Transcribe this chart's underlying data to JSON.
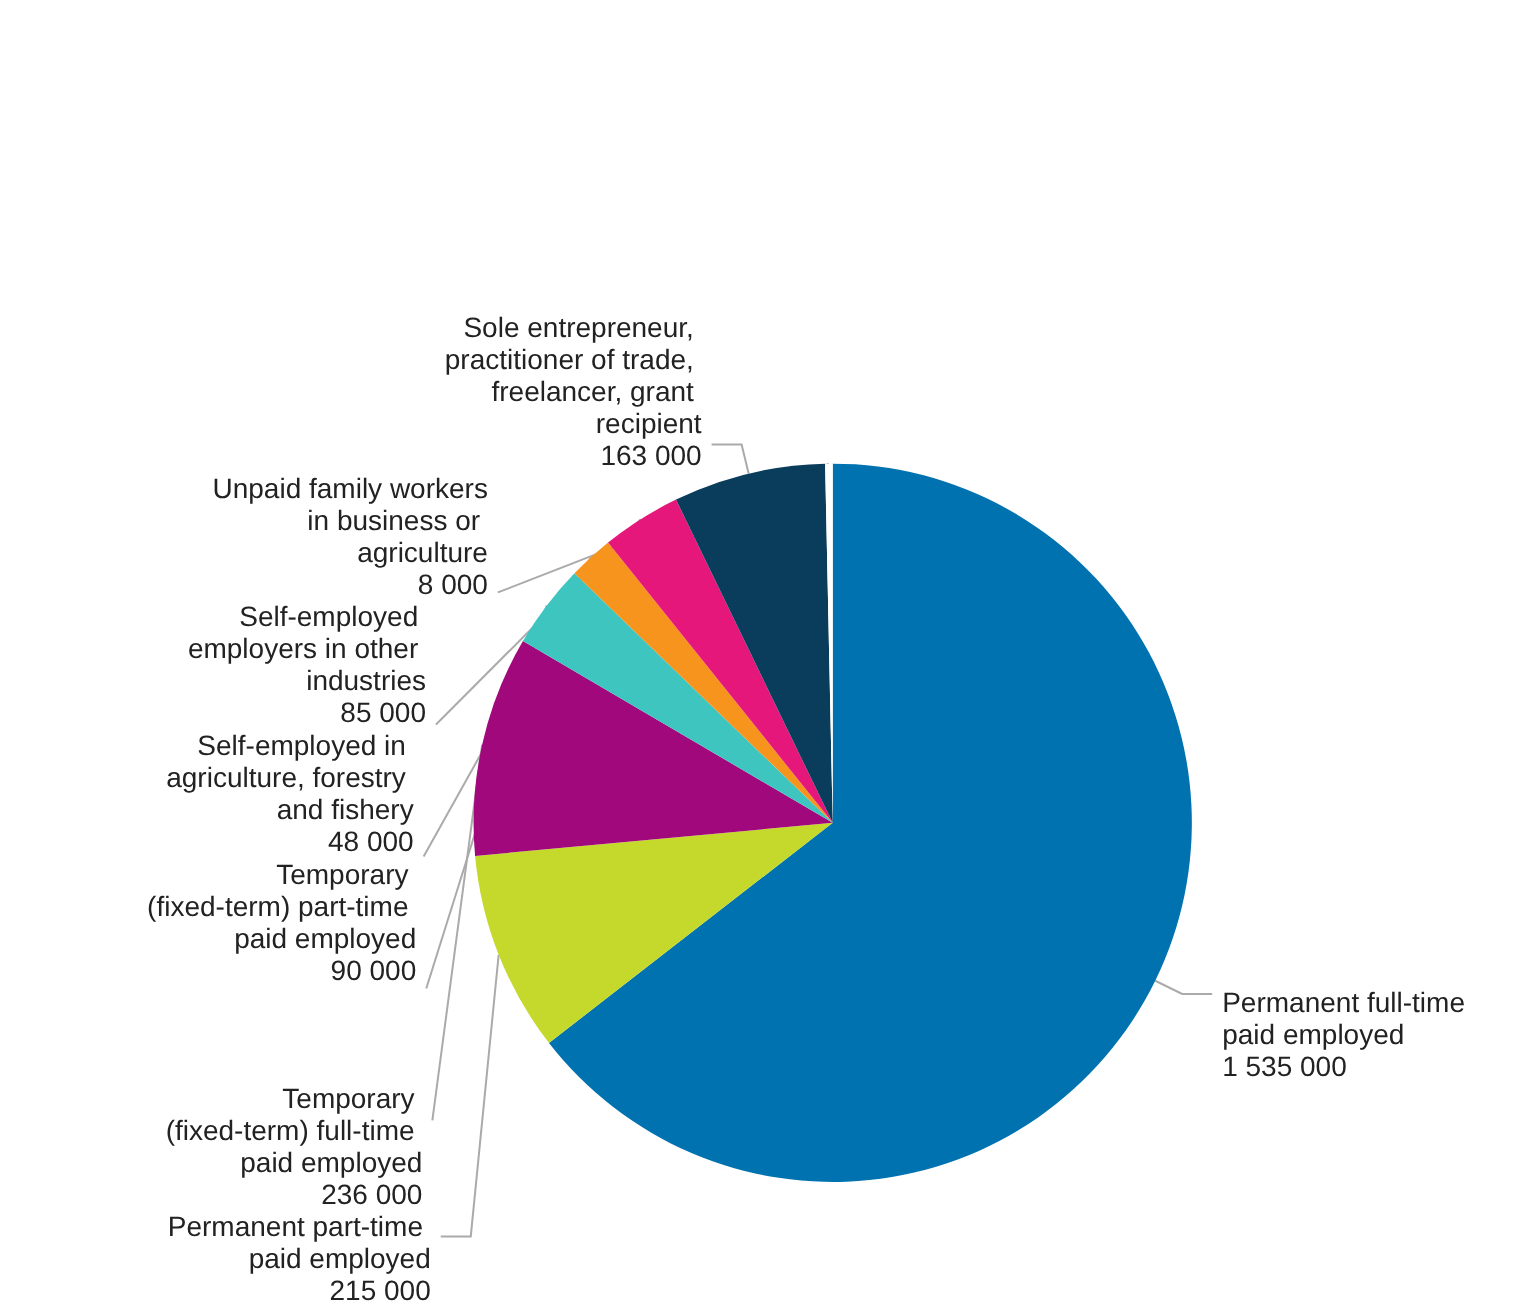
{
  "chart_data": {
    "type": "pie",
    "categories": [
      "Permanent full-time paid employed",
      "Permanent part-time paid employed",
      "Temporary (fixed-term) full-time paid employed",
      "Temporary (fixed-term) part-time paid employed",
      "Self-employed in agriculture, forestry and fishery",
      "Self-employed employers in other industries",
      "Sole entrepreneur, practitioner of trade, freelancer, grant recipient",
      "Unpaid family workers in business or agriculture"
    ],
    "values": [
      1535000,
      215000,
      236000,
      90000,
      48000,
      85000,
      163000,
      8000
    ],
    "value_labels": [
      "1 535 000",
      "215 000",
      "236 000",
      "90 000",
      "48 000",
      "85 000",
      "163 000",
      "8 000"
    ],
    "colors": [
      "#0072b0",
      "#c5d92d",
      "#a0087c",
      "#3ec5c0",
      "#f7941d",
      "#e5177b",
      "#0a3d5c",
      "#ffffff"
    ]
  }
}
